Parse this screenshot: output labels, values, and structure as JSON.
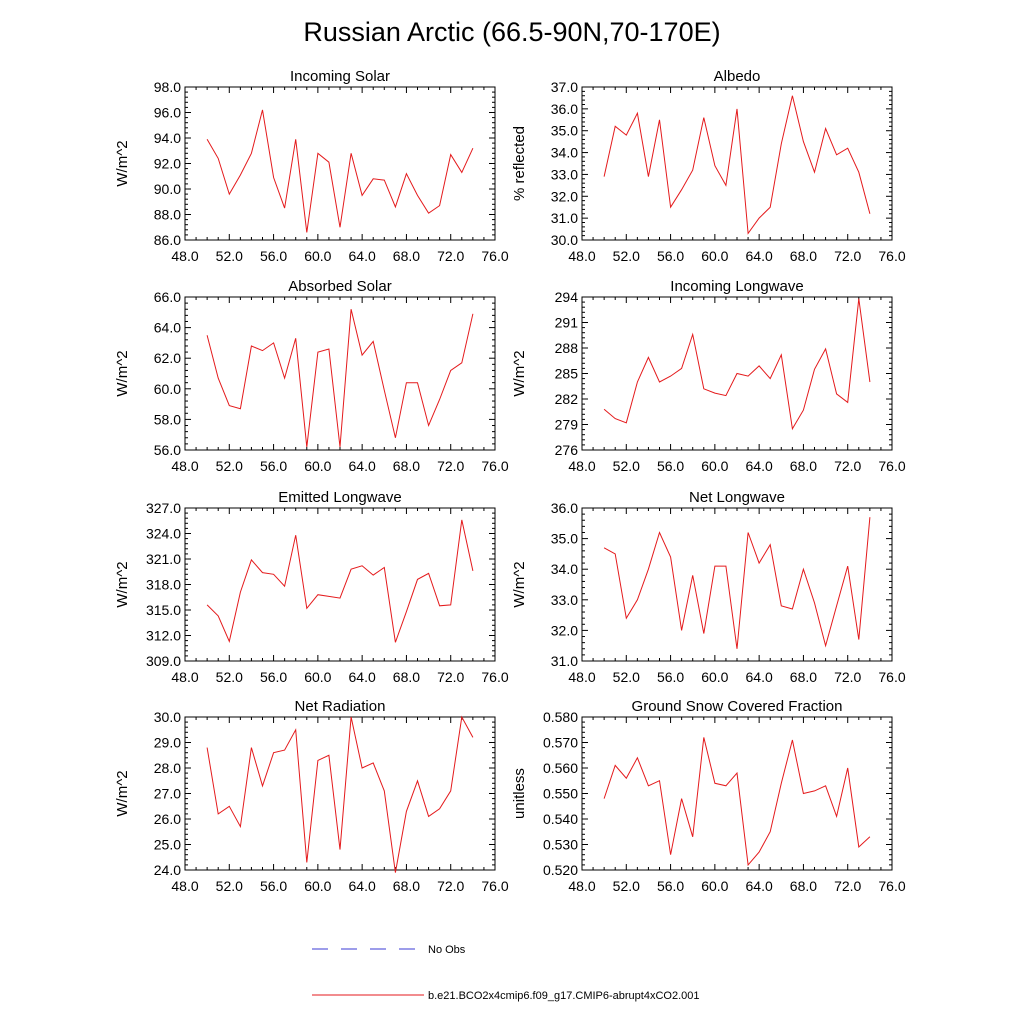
{
  "figure": {
    "title": "Russian Arctic (66.5-90N,70-170E)"
  },
  "legend": {
    "entries": [
      {
        "label": "No Obs",
        "color": "#3b3bd6",
        "style": "dashed"
      },
      {
        "label": "b.e21.BCO2x4cmip6.f09_g17.CMIP6-abrupt4xCO2.001",
        "color": "#e41a1c",
        "style": "solid"
      }
    ]
  },
  "chart_data": [
    {
      "type": "line",
      "title": "Incoming Solar",
      "ylabel": "W/m^2",
      "xlim": [
        48,
        76
      ],
      "ylim": [
        86,
        98
      ],
      "xticks": [
        "48.0",
        "52.0",
        "56.0",
        "60.0",
        "64.0",
        "68.0",
        "72.0",
        "76.0"
      ],
      "yticks": [
        "86.0",
        "88.0",
        "90.0",
        "92.0",
        "94.0",
        "96.0",
        "98.0"
      ],
      "xticks_values": [
        48,
        52,
        56,
        60,
        64,
        68,
        72,
        76
      ],
      "yticks_values": [
        86,
        88,
        90,
        92,
        94,
        96,
        98
      ],
      "series": [
        {
          "name": "b.e21.BCO2x4cmip6.f09_g17.CMIP6-abrupt4xCO2.001",
          "color": "#e41a1c",
          "x": [
            50,
            51,
            52,
            53,
            54,
            55,
            56,
            57,
            58,
            59,
            60,
            61,
            62,
            63,
            64,
            65,
            66,
            67,
            68,
            69,
            70,
            71,
            72,
            73,
            74
          ],
          "y": [
            93.9,
            92.4,
            89.6,
            91.1,
            92.8,
            96.2,
            90.9,
            88.5,
            93.9,
            86.6,
            92.8,
            92.1,
            87.0,
            92.8,
            89.5,
            90.8,
            90.7,
            88.6,
            91.2,
            89.5,
            88.1,
            88.7,
            92.7,
            91.3,
            93.2
          ]
        }
      ]
    },
    {
      "type": "line",
      "title": "Albedo",
      "ylabel": "% reflected",
      "xlim": [
        48,
        76
      ],
      "ylim": [
        30,
        37
      ],
      "xticks": [
        "48.0",
        "52.0",
        "56.0",
        "60.0",
        "64.0",
        "68.0",
        "72.0",
        "76.0"
      ],
      "yticks": [
        "30.0",
        "31.0",
        "32.0",
        "33.0",
        "34.0",
        "35.0",
        "36.0",
        "37.0"
      ],
      "xticks_values": [
        48,
        52,
        56,
        60,
        64,
        68,
        72,
        76
      ],
      "yticks_values": [
        30,
        31,
        32,
        33,
        34,
        35,
        36,
        37
      ],
      "series": [
        {
          "name": "b.e21.BCO2x4cmip6.f09_g17.CMIP6-abrupt4xCO2.001",
          "color": "#e41a1c",
          "x": [
            50,
            51,
            52,
            53,
            54,
            55,
            56,
            57,
            58,
            59,
            60,
            61,
            62,
            63,
            64,
            65,
            66,
            67,
            68,
            69,
            70,
            71,
            72,
            73,
            74
          ],
          "y": [
            32.9,
            35.2,
            34.8,
            35.8,
            32.9,
            35.5,
            31.5,
            32.3,
            33.2,
            35.6,
            33.4,
            32.5,
            36.0,
            30.3,
            31.0,
            31.5,
            34.4,
            36.6,
            34.5,
            33.1,
            35.1,
            33.9,
            34.2,
            33.1,
            31.2
          ]
        }
      ]
    },
    {
      "type": "line",
      "title": "Absorbed Solar",
      "ylabel": "W/m^2",
      "xlim": [
        48,
        76
      ],
      "ylim": [
        56,
        66
      ],
      "xticks": [
        "48.0",
        "52.0",
        "56.0",
        "60.0",
        "64.0",
        "68.0",
        "72.0",
        "76.0"
      ],
      "yticks": [
        "56.0",
        "58.0",
        "60.0",
        "62.0",
        "64.0",
        "66.0"
      ],
      "xticks_values": [
        48,
        52,
        56,
        60,
        64,
        68,
        72,
        76
      ],
      "yticks_values": [
        56,
        58,
        60,
        62,
        64,
        66
      ],
      "series": [
        {
          "name": "b.e21.BCO2x4cmip6.f09_g17.CMIP6-abrupt4xCO2.001",
          "color": "#e41a1c",
          "x": [
            50,
            51,
            52,
            53,
            54,
            55,
            56,
            57,
            58,
            59,
            60,
            61,
            62,
            63,
            64,
            65,
            66,
            67,
            68,
            69,
            70,
            71,
            72,
            73,
            74
          ],
          "y": [
            63.5,
            60.7,
            58.9,
            58.7,
            62.8,
            62.5,
            63.0,
            60.7,
            63.3,
            56.2,
            62.4,
            62.6,
            56.2,
            65.2,
            62.2,
            63.1,
            59.9,
            56.8,
            60.4,
            60.4,
            57.6,
            59.3,
            61.2,
            61.7,
            64.9
          ]
        }
      ]
    },
    {
      "type": "line",
      "title": "Incoming Longwave",
      "ylabel": "W/m^2",
      "xlim": [
        48,
        76
      ],
      "ylim": [
        276,
        294
      ],
      "xticks": [
        "48.0",
        "52.0",
        "56.0",
        "60.0",
        "64.0",
        "68.0",
        "72.0",
        "76.0"
      ],
      "yticks": [
        "276",
        "279",
        "282",
        "285",
        "288",
        "291",
        "294"
      ],
      "xticks_values": [
        48,
        52,
        56,
        60,
        64,
        68,
        72,
        76
      ],
      "yticks_values": [
        276,
        279,
        282,
        285,
        288,
        291,
        294
      ],
      "series": [
        {
          "name": "b.e21.BCO2x4cmip6.f09_g17.CMIP6-abrupt4xCO2.001",
          "color": "#e41a1c",
          "x": [
            50,
            51,
            52,
            53,
            54,
            55,
            56,
            57,
            58,
            59,
            60,
            61,
            62,
            63,
            64,
            65,
            66,
            67,
            68,
            69,
            70,
            71,
            72,
            73,
            74
          ],
          "y": [
            280.8,
            279.7,
            279.2,
            284.0,
            286.9,
            284.0,
            284.7,
            285.6,
            289.6,
            283.2,
            282.7,
            282.4,
            285.0,
            284.7,
            285.9,
            284.4,
            287.2,
            278.5,
            280.7,
            285.5,
            287.9,
            282.6,
            281.6,
            293.8,
            284.0
          ]
        }
      ]
    },
    {
      "type": "line",
      "title": "Emitted Longwave",
      "ylabel": "W/m^2",
      "xlim": [
        48,
        76
      ],
      "ylim": [
        309,
        327
      ],
      "xticks": [
        "48.0",
        "52.0",
        "56.0",
        "60.0",
        "64.0",
        "68.0",
        "72.0",
        "76.0"
      ],
      "yticks": [
        "309.0",
        "312.0",
        "315.0",
        "318.0",
        "321.0",
        "324.0",
        "327.0"
      ],
      "xticks_values": [
        48,
        52,
        56,
        60,
        64,
        68,
        72,
        76
      ],
      "yticks_values": [
        309,
        312,
        315,
        318,
        321,
        324,
        327
      ],
      "series": [
        {
          "name": "b.e21.BCO2x4cmip6.f09_g17.CMIP6-abrupt4xCO2.001",
          "color": "#e41a1c",
          "x": [
            50,
            51,
            52,
            53,
            54,
            55,
            56,
            57,
            58,
            59,
            60,
            61,
            62,
            63,
            64,
            65,
            66,
            67,
            68,
            69,
            70,
            71,
            72,
            73,
            74
          ],
          "y": [
            315.6,
            314.3,
            311.3,
            317.1,
            320.9,
            319.4,
            319.2,
            317.8,
            323.8,
            315.2,
            316.8,
            316.6,
            316.4,
            319.8,
            320.2,
            319.1,
            320.0,
            311.2,
            314.8,
            318.6,
            319.3,
            315.5,
            315.6,
            325.6,
            319.6
          ]
        }
      ]
    },
    {
      "type": "line",
      "title": "Net Longwave",
      "ylabel": "W/m^2",
      "xlim": [
        48,
        76
      ],
      "ylim": [
        31,
        36
      ],
      "xticks": [
        "48.0",
        "52.0",
        "56.0",
        "60.0",
        "64.0",
        "68.0",
        "72.0",
        "76.0"
      ],
      "yticks": [
        "31.0",
        "32.0",
        "33.0",
        "34.0",
        "35.0",
        "36.0"
      ],
      "xticks_values": [
        48,
        52,
        56,
        60,
        64,
        68,
        72,
        76
      ],
      "yticks_values": [
        31,
        32,
        33,
        34,
        35,
        36
      ],
      "series": [
        {
          "name": "b.e21.BCO2x4cmip6.f09_g17.CMIP6-abrupt4xCO2.001",
          "color": "#e41a1c",
          "x": [
            50,
            51,
            52,
            53,
            54,
            55,
            56,
            57,
            58,
            59,
            60,
            61,
            62,
            63,
            64,
            65,
            66,
            67,
            68,
            69,
            70,
            71,
            72,
            73,
            74
          ],
          "y": [
            34.7,
            34.5,
            32.4,
            33.0,
            34.0,
            35.2,
            34.4,
            32.0,
            33.8,
            31.9,
            34.1,
            34.1,
            31.4,
            35.2,
            34.2,
            34.8,
            32.8,
            32.7,
            34.0,
            32.9,
            31.5,
            32.8,
            34.1,
            31.7,
            35.7
          ]
        }
      ]
    },
    {
      "type": "line",
      "title": "Net Radiation",
      "ylabel": "W/m^2",
      "xlim": [
        48,
        76
      ],
      "ylim": [
        24,
        30
      ],
      "xticks": [
        "48.0",
        "52.0",
        "56.0",
        "60.0",
        "64.0",
        "68.0",
        "72.0",
        "76.0"
      ],
      "yticks": [
        "24.0",
        "25.0",
        "26.0",
        "27.0",
        "28.0",
        "29.0",
        "30.0"
      ],
      "xticks_values": [
        48,
        52,
        56,
        60,
        64,
        68,
        72,
        76
      ],
      "yticks_values": [
        24,
        25,
        26,
        27,
        28,
        29,
        30
      ],
      "series": [
        {
          "name": "b.e21.BCO2x4cmip6.f09_g17.CMIP6-abrupt4xCO2.001",
          "color": "#e41a1c",
          "x": [
            50,
            51,
            52,
            53,
            54,
            55,
            56,
            57,
            58,
            59,
            60,
            61,
            62,
            63,
            64,
            65,
            66,
            67,
            68,
            69,
            70,
            71,
            72,
            73,
            74
          ],
          "y": [
            28.8,
            26.2,
            26.5,
            25.7,
            28.8,
            27.3,
            28.6,
            28.7,
            29.5,
            24.3,
            28.3,
            28.5,
            24.8,
            30.0,
            28.0,
            28.2,
            27.1,
            23.9,
            26.3,
            27.5,
            26.1,
            26.4,
            27.1,
            30.0,
            29.2
          ]
        }
      ]
    },
    {
      "type": "line",
      "title": "Ground Snow Covered Fraction",
      "ylabel": "unitless",
      "xlim": [
        48,
        76
      ],
      "ylim": [
        0.52,
        0.58
      ],
      "xticks": [
        "48.0",
        "52.0",
        "56.0",
        "60.0",
        "64.0",
        "68.0",
        "72.0",
        "76.0"
      ],
      "yticks": [
        "0.520",
        "0.530",
        "0.540",
        "0.550",
        "0.560",
        "0.570",
        "0.580"
      ],
      "xticks_values": [
        48,
        52,
        56,
        60,
        64,
        68,
        72,
        76
      ],
      "yticks_values": [
        0.52,
        0.53,
        0.54,
        0.55,
        0.56,
        0.57,
        0.58
      ],
      "series": [
        {
          "name": "b.e21.BCO2x4cmip6.f09_g17.CMIP6-abrupt4xCO2.001",
          "color": "#e41a1c",
          "x": [
            50,
            51,
            52,
            53,
            54,
            55,
            56,
            57,
            58,
            59,
            60,
            61,
            62,
            63,
            64,
            65,
            66,
            67,
            68,
            69,
            70,
            71,
            72,
            73,
            74
          ],
          "y": [
            0.548,
            0.561,
            0.556,
            0.564,
            0.553,
            0.555,
            0.526,
            0.548,
            0.533,
            0.572,
            0.554,
            0.553,
            0.558,
            0.522,
            0.527,
            0.535,
            0.554,
            0.571,
            0.55,
            0.551,
            0.553,
            0.541,
            0.56,
            0.529,
            0.533
          ]
        }
      ]
    }
  ]
}
